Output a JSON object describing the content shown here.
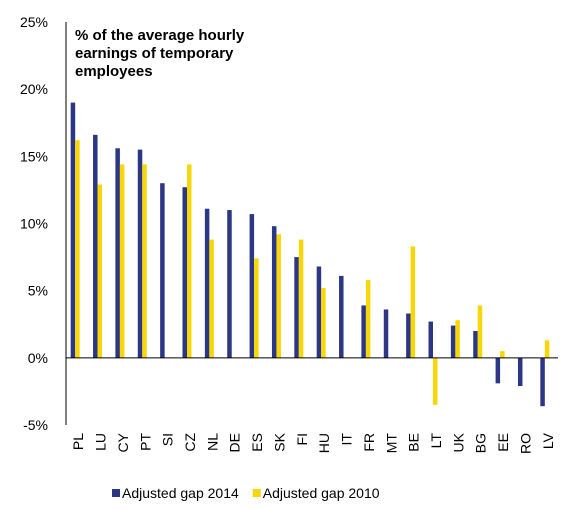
{
  "chart_data": {
    "type": "bar",
    "title": "% of the average hourly earnings of temporary employees",
    "categories": [
      "PL",
      "LU",
      "CY",
      "PT",
      "SI",
      "CZ",
      "NL",
      "DE",
      "ES",
      "SK",
      "FI",
      "HU",
      "IT",
      "FR",
      "MT",
      "BE",
      "LT",
      "UK",
      "BG",
      "EE",
      "RO",
      "LV"
    ],
    "series": [
      {
        "name": "Adjusted gap 2014",
        "color": "#2b3784",
        "values": [
          19.0,
          16.6,
          15.6,
          15.5,
          13.0,
          12.7,
          11.1,
          11.0,
          10.7,
          9.8,
          7.5,
          6.8,
          6.1,
          3.9,
          3.6,
          3.3,
          2.7,
          2.4,
          2.0,
          -1.9,
          -2.1,
          -3.6
        ]
      },
      {
        "name": "Adjusted gap 2010",
        "color": "#f7d708",
        "values": [
          16.2,
          12.9,
          14.4,
          14.4,
          null,
          14.4,
          8.8,
          null,
          7.4,
          9.2,
          8.8,
          5.2,
          null,
          5.8,
          null,
          8.3,
          -3.5,
          2.8,
          3.9,
          0.5,
          null,
          1.3
        ]
      }
    ],
    "ylim": [
      -5,
      25
    ],
    "yticks": [
      {
        "value": -5,
        "label": "-5%"
      },
      {
        "value": 0,
        "label": "0%"
      },
      {
        "value": 5,
        "label": "5%"
      },
      {
        "value": 10,
        "label": "10%"
      },
      {
        "value": 15,
        "label": "15%"
      },
      {
        "value": 20,
        "label": "20%"
      },
      {
        "value": 25,
        "label": "25%"
      }
    ],
    "grid": false,
    "legend": "bottom"
  }
}
